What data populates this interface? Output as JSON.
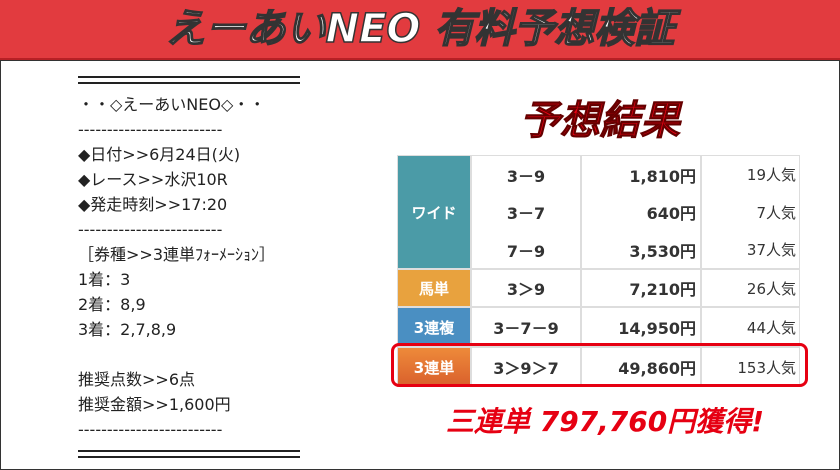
{
  "header": {
    "title": "えーあいNEO 有料予想検証"
  },
  "prediction": {
    "lines": [
      "・・◇えーあいNEO◇・・",
      "-------------------------",
      "◆日付>>6月24日(火)",
      "◆レース>>水沢10R",
      "◆発走時刻>>17:20",
      "-------------------------",
      "［券種>>3連単ﾌｫｰﾒｰｼｮﾝ］",
      "1着：3",
      "2着：8,9",
      "3着：2,7,8,9",
      "推奨点数>>6点",
      "推奨金額>>1,600円",
      "-------------------------"
    ]
  },
  "result": {
    "title": "予想結果",
    "rows": [
      {
        "bet_type": "ワイド",
        "entries": [
          [
            "3－9",
            "1,810円",
            "19人気"
          ],
          [
            "3－7",
            "640円",
            "7人気"
          ],
          [
            "7－9",
            "3,530円",
            "37人気"
          ]
        ]
      },
      {
        "bet_type": "馬単",
        "entries": [
          [
            "3＞9",
            "7,210円",
            "26人気"
          ]
        ]
      },
      {
        "bet_type": "3連複",
        "entries": [
          [
            "3－7－9",
            "14,950円",
            "44人気"
          ]
        ]
      },
      {
        "bet_type": "3連単",
        "entries": [
          [
            "3＞9＞7",
            "49,860円",
            "153人気"
          ]
        ]
      }
    ]
  },
  "footer": {
    "text": "三連単 797,760円獲得!"
  }
}
